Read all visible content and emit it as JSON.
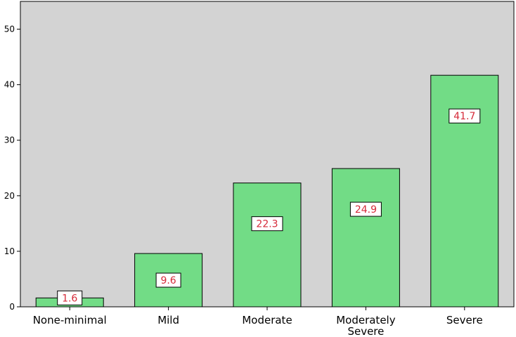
{
  "chart_data": {
    "type": "bar",
    "categories": [
      "None-minimal",
      "Mild",
      "Moderate",
      "Moderately Severe",
      "Severe"
    ],
    "category_lines": [
      [
        "None-minimal"
      ],
      [
        "Mild"
      ],
      [
        "Moderate"
      ],
      [
        "Moderately",
        "Severe"
      ],
      [
        "Severe"
      ]
    ],
    "values": [
      1.6,
      9.6,
      22.3,
      24.9,
      41.7
    ],
    "data_labels": [
      "1.6",
      "9.6",
      "22.3",
      "24.9",
      "41.7"
    ],
    "yticks": [
      0,
      10,
      20,
      30,
      40,
      50
    ],
    "ytick_labels": [
      "0",
      "10",
      "20",
      "30",
      "40",
      "50"
    ],
    "ylim": [
      0,
      55
    ],
    "title": "",
    "xlabel": "",
    "ylabel": "",
    "grid": false,
    "colors": {
      "bar_fill": "#72dc86",
      "bar_stroke": "#000000",
      "plot_background": "#d3d3d3",
      "label_text": "#d62b3a",
      "label_box": "#ffffff"
    }
  }
}
